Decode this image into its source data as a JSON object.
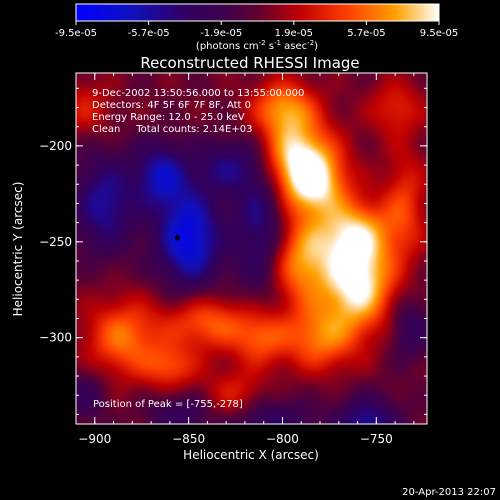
{
  "colorbar": {
    "ticks": [
      "-9.5e-05",
      "-5.7e-05",
      "-1.9e-05",
      "1.9e-05",
      "5.7e-05",
      "9.5e-05"
    ],
    "unit_main": "(photons cm",
    "unit_exp1": "-2",
    "unit_mid": " s",
    "unit_exp2": "-1",
    "unit_end": " asec",
    "unit_exp3": "-2",
    "unit_close": ")",
    "range": [
      -9.5e-05,
      9.5e-05
    ]
  },
  "chart_data": {
    "type": "heatmap",
    "title": "Reconstructed RHESSI Image",
    "xlabel": "Heliocentric X (arcsec)",
    "ylabel": "Heliocentric Y (arcsec)",
    "xlim": [
      -910,
      -723
    ],
    "ylim": [
      -345,
      -162
    ],
    "xticks": [
      -900,
      -850,
      -800,
      -750
    ],
    "yticks": [
      -200,
      -250,
      -300
    ],
    "xtick_labels": [
      "−900",
      "−850",
      "−800",
      "−750"
    ],
    "ytick_labels": [
      "−200",
      "−250",
      "−300"
    ],
    "annotations": [
      "9-Dec-2002 13:50:56.000 to 13:55:00.000",
      "Detectors: 4F 5F 6F 7F 8F, Att 0",
      "Energy Range: 12.0 - 25.0 keV",
      "Clean     Total counts: 2.14E+03"
    ],
    "peak_label": "Position of Peak = [-755,-278]",
    "peak": {
      "x": -755,
      "y": -278
    },
    "marker": {
      "x": -856,
      "y": -248
    },
    "blobs": [
      {
        "x": -793,
        "y": -205,
        "sx": 14,
        "sy": 14,
        "a": 0.85
      },
      {
        "x": -783,
        "y": -220,
        "sx": 12,
        "sy": 12,
        "a": 0.75
      },
      {
        "x": -760,
        "y": -272,
        "sx": 13,
        "sy": 16,
        "a": 1.0
      },
      {
        "x": -762,
        "y": -245,
        "sx": 14,
        "sy": 12,
        "a": 0.75
      },
      {
        "x": -790,
        "y": -260,
        "sx": 12,
        "sy": 16,
        "a": 0.7
      },
      {
        "x": -780,
        "y": -300,
        "sx": 14,
        "sy": 12,
        "a": 0.6
      },
      {
        "x": -800,
        "y": -180,
        "sx": 12,
        "sy": 10,
        "a": 0.65
      },
      {
        "x": -840,
        "y": -292,
        "sx": 16,
        "sy": 10,
        "a": 0.55
      },
      {
        "x": -885,
        "y": -300,
        "sx": 14,
        "sy": 14,
        "a": 0.6
      },
      {
        "x": -812,
        "y": -300,
        "sx": 10,
        "sy": 10,
        "a": 0.5
      },
      {
        "x": -735,
        "y": -230,
        "sx": 8,
        "sy": 20,
        "a": 0.4
      },
      {
        "x": -825,
        "y": -330,
        "sx": 12,
        "sy": 10,
        "a": 0.35
      },
      {
        "x": -860,
        "y": -315,
        "sx": 10,
        "sy": 8,
        "a": 0.45
      },
      {
        "x": -740,
        "y": -180,
        "sx": 10,
        "sy": 10,
        "a": 0.35
      },
      {
        "x": -905,
        "y": -180,
        "sx": 10,
        "sy": 10,
        "a": 0.3
      },
      {
        "x": -850,
        "y": -248,
        "sx": 12,
        "sy": 18,
        "a": -0.9
      },
      {
        "x": -865,
        "y": -215,
        "sx": 10,
        "sy": 12,
        "a": -0.65
      },
      {
        "x": -895,
        "y": -230,
        "sx": 12,
        "sy": 18,
        "a": -0.6
      },
      {
        "x": -812,
        "y": -240,
        "sx": 10,
        "sy": 28,
        "a": -0.55
      },
      {
        "x": -830,
        "y": -210,
        "sx": 12,
        "sy": 10,
        "a": -0.45
      },
      {
        "x": -808,
        "y": -345,
        "sx": 16,
        "sy": 10,
        "a": -0.45
      },
      {
        "x": -755,
        "y": -345,
        "sx": 12,
        "sy": 10,
        "a": -0.6
      },
      {
        "x": -855,
        "y": -340,
        "sx": 12,
        "sy": 8,
        "a": -0.35
      },
      {
        "x": -732,
        "y": -295,
        "sx": 8,
        "sy": 12,
        "a": -0.35
      },
      {
        "x": -905,
        "y": -330,
        "sx": 8,
        "sy": 10,
        "a": -0.3
      }
    ]
  },
  "footer": {
    "timestamp": "20-Apr-2013 22:07"
  }
}
